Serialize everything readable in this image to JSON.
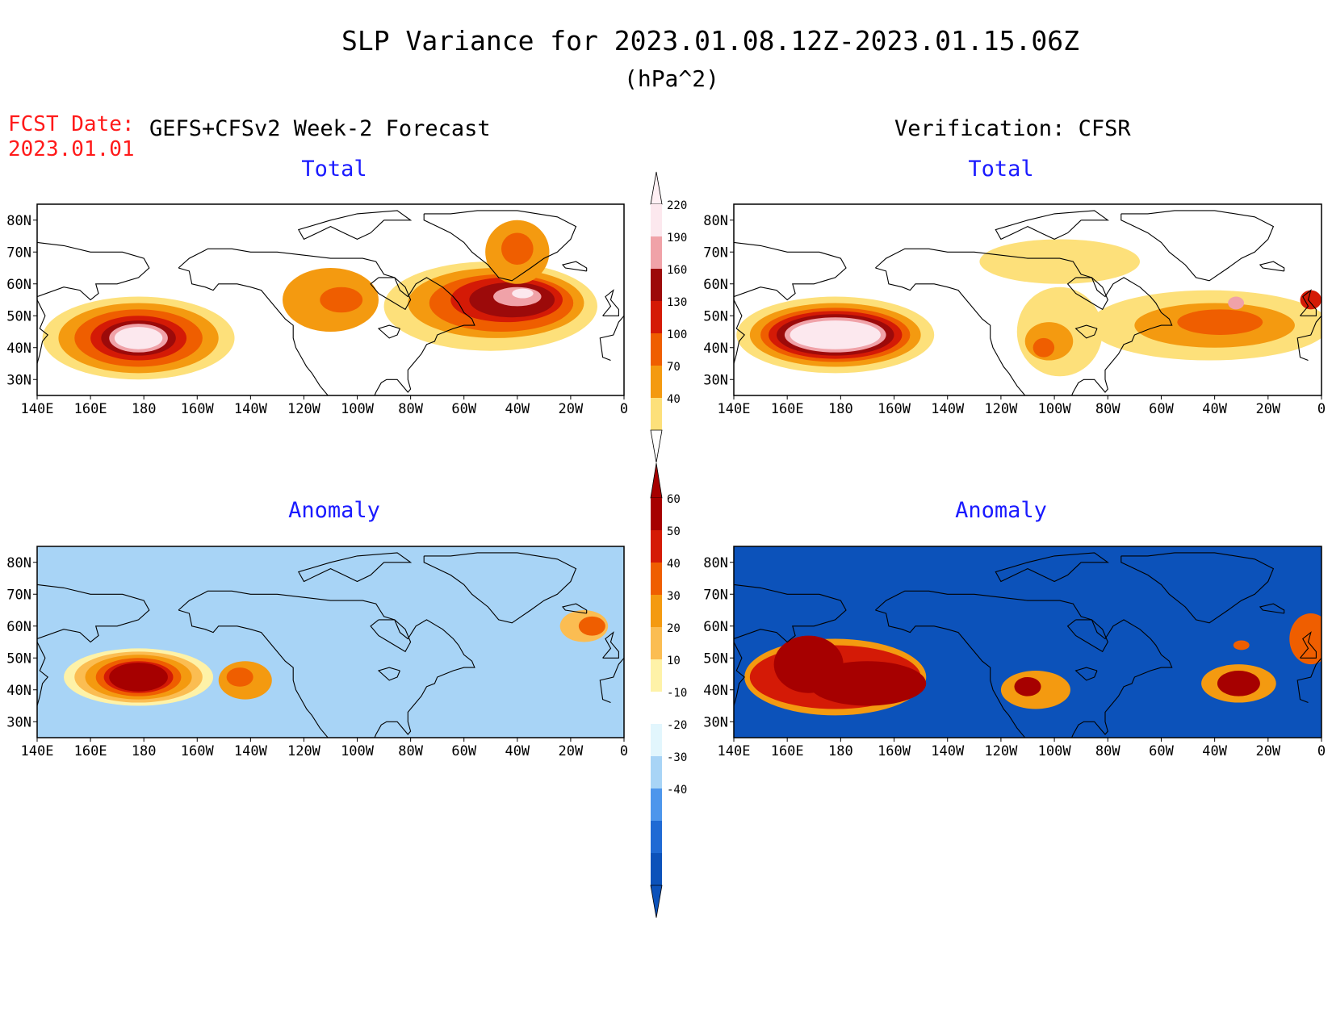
{
  "header": {
    "title": "SLP Variance for 2023.01.08.12Z-2023.01.15.06Z",
    "units": "(hPa^2)",
    "fcst_date_label": "FCST Date:",
    "fcst_date_value": "2023.01.01",
    "left_heading": "GEFS+CFSv2 Week-2 Forecast",
    "right_heading": "Verification: CFSR"
  },
  "panels": {
    "fc_total": {
      "title": "Total"
    },
    "vf_total": {
      "title": "Total"
    },
    "fc_anom": {
      "title": "Anomaly"
    },
    "vf_anom": {
      "title": "Anomaly"
    }
  },
  "axes": {
    "x_ticks": [
      "140E",
      "160E",
      "180",
      "160W",
      "140W",
      "120W",
      "100W",
      "80W",
      "60W",
      "40W",
      "20W",
      "0"
    ],
    "y_ticks": [
      "80N",
      "70N",
      "60N",
      "50N",
      "40N",
      "30N"
    ],
    "x_range_deg_east": [
      140,
      360
    ],
    "y_range_lat": [
      25,
      85
    ]
  },
  "colorbars": {
    "total": {
      "labels": [
        "220",
        "190",
        "160",
        "130",
        "100",
        "70",
        "40"
      ],
      "colors": [
        "#fce8ee",
        "#f0a2a8",
        "#9c0a0a",
        "#d41a06",
        "#ef5e00",
        "#f49a10",
        "#fde07a"
      ]
    },
    "anomaly": {
      "labels": [
        "60",
        "50",
        "40",
        "30",
        "20",
        "10",
        "-10",
        "-20",
        "-30",
        "-40"
      ],
      "pos_colors": [
        "#a60000",
        "#d41a06",
        "#ef5e00",
        "#f49a10",
        "#fbbd52",
        "#fef2a8"
      ],
      "white": "#ffffff",
      "neg_colors": [
        "#e2f6fd",
        "#a8d4f6",
        "#4d96ec",
        "#1f6ad4",
        "#0c52ba"
      ]
    }
  },
  "colors": {
    "title_text": "#000000",
    "fcst_date": "#ff1a1a",
    "panel_title": "#1a1aff",
    "coastline": "#000000"
  },
  "map_data": {
    "fc_total": [
      {
        "lon": 178,
        "lat": 43,
        "rlon": 36,
        "rlat": 13,
        "level": 1
      },
      {
        "lon": 178,
        "lat": 43,
        "rlon": 30,
        "rlat": 11,
        "level": 2
      },
      {
        "lon": 178,
        "lat": 43,
        "rlon": 24,
        "rlat": 9,
        "level": 3
      },
      {
        "lon": 178,
        "lat": 43,
        "rlon": 18,
        "rlat": 7,
        "level": 4
      },
      {
        "lon": 178,
        "lat": 43,
        "rlon": 14,
        "rlat": 5.5,
        "level": 5
      },
      {
        "lon": 178,
        "lat": 43,
        "rlon": 11,
        "rlat": 4.5,
        "level": 6
      },
      {
        "lon": 178,
        "lat": 43,
        "rlon": 9,
        "rlat": 3.5,
        "level": 7
      },
      {
        "lon": 310,
        "lat": 53,
        "rlon": 40,
        "rlat": 14,
        "level": 1
      },
      {
        "lon": 312,
        "lat": 54,
        "rlon": 33,
        "rlat": 11,
        "level": 2
      },
      {
        "lon": 314,
        "lat": 54,
        "rlon": 27,
        "rlat": 9,
        "level": 3
      },
      {
        "lon": 316,
        "lat": 55,
        "rlon": 21,
        "rlat": 7,
        "level": 4
      },
      {
        "lon": 318,
        "lat": 55,
        "rlon": 16,
        "rlat": 5.5,
        "level": 5
      },
      {
        "lon": 320,
        "lat": 56,
        "rlon": 9,
        "rlat": 3,
        "level": 6
      },
      {
        "lon": 322,
        "lat": 57,
        "rlon": 4,
        "rlat": 1.5,
        "level": 7
      },
      {
        "lon": 320,
        "lat": 70,
        "rlon": 12,
        "rlat": 10,
        "level": 2
      },
      {
        "lon": 320,
        "lat": 71,
        "rlon": 6,
        "rlat": 5,
        "level": 3
      },
      {
        "lon": 250,
        "lat": 55,
        "rlon": 18,
        "rlat": 10,
        "level": 2
      },
      {
        "lon": 254,
        "lat": 55,
        "rlon": 8,
        "rlat": 4,
        "level": 3
      }
    ],
    "vf_total": [
      {
        "lon": 178,
        "lat": 44,
        "rlon": 37,
        "rlat": 12,
        "level": 1
      },
      {
        "lon": 178,
        "lat": 44,
        "rlon": 32,
        "rlat": 10,
        "level": 2
      },
      {
        "lon": 178,
        "lat": 44,
        "rlon": 28,
        "rlat": 8.5,
        "level": 3
      },
      {
        "lon": 178,
        "lat": 44,
        "rlon": 25,
        "rlat": 7.5,
        "level": 4
      },
      {
        "lon": 178,
        "lat": 44,
        "rlon": 22,
        "rlat": 6.5,
        "level": 5
      },
      {
        "lon": 178,
        "lat": 44,
        "rlon": 19,
        "rlat": 5.5,
        "level": 6
      },
      {
        "lon": 178,
        "lat": 44,
        "rlon": 17,
        "rlat": 4.5,
        "level": 7
      },
      {
        "lon": 262,
        "lat": 45,
        "rlon": 16,
        "rlat": 14,
        "level": 1
      },
      {
        "lon": 258,
        "lat": 42,
        "rlon": 9,
        "rlat": 6,
        "level": 2
      },
      {
        "lon": 256,
        "lat": 40,
        "rlon": 4,
        "rlat": 3,
        "level": 3
      },
      {
        "lon": 318,
        "lat": 47,
        "rlon": 45,
        "rlat": 11,
        "level": 1
      },
      {
        "lon": 320,
        "lat": 47,
        "rlon": 30,
        "rlat": 7,
        "level": 2
      },
      {
        "lon": 322,
        "lat": 48,
        "rlon": 16,
        "rlat": 4,
        "level": 3
      },
      {
        "lon": 328,
        "lat": 54,
        "rlon": 3,
        "rlat": 2,
        "level": 6
      },
      {
        "lon": 356,
        "lat": 55,
        "rlon": 4,
        "rlat": 3,
        "level": 4
      },
      {
        "lon": 262,
        "lat": 67,
        "rlon": 30,
        "rlat": 7,
        "level": 1
      }
    ],
    "fc_anom": [
      {
        "lon": 178,
        "lat": 44,
        "rlon": 28,
        "rlat": 9,
        "level": 1
      },
      {
        "lon": 178,
        "lat": 44,
        "rlon": 24,
        "rlat": 8,
        "level": 2
      },
      {
        "lon": 178,
        "lat": 44,
        "rlon": 20,
        "rlat": 7,
        "level": 3
      },
      {
        "lon": 178,
        "lat": 44,
        "rlon": 16,
        "rlat": 6,
        "level": 4
      },
      {
        "lon": 178,
        "lat": 44,
        "rlon": 13,
        "rlat": 5,
        "level": 5
      },
      {
        "lon": 178,
        "lat": 44,
        "rlon": 11,
        "rlat": 4.5,
        "level": 6
      },
      {
        "lon": 218,
        "lat": 43,
        "rlon": 10,
        "rlat": 6,
        "level": 3
      },
      {
        "lon": 216,
        "lat": 44,
        "rlon": 5,
        "rlat": 3,
        "level": 4
      },
      {
        "lon": 345,
        "lat": 60,
        "rlon": 9,
        "rlat": 5,
        "level": 2
      },
      {
        "lon": 348,
        "lat": 60,
        "rlon": 5,
        "rlat": 3,
        "level": 4
      },
      {
        "lon": 335,
        "lat": 44,
        "rlon": 6,
        "rlat": 3,
        "level": -2
      }
    ],
    "vf_anom": [
      {
        "lon": 178,
        "lat": 44,
        "rlon": 34,
        "rlat": 12,
        "level": 3
      },
      {
        "lon": 178,
        "lat": 44,
        "rlon": 32,
        "rlat": 10,
        "level": 5
      },
      {
        "lon": 168,
        "lat": 48,
        "rlon": 13,
        "rlat": 9,
        "level": 6
      },
      {
        "lon": 190,
        "lat": 42,
        "rlon": 22,
        "rlat": 7,
        "level": 6
      },
      {
        "lon": 253,
        "lat": 40,
        "rlon": 13,
        "rlat": 6,
        "level": 3
      },
      {
        "lon": 250,
        "lat": 41,
        "rlon": 5,
        "rlat": 3,
        "level": 6
      },
      {
        "lon": 329,
        "lat": 42,
        "rlon": 14,
        "rlat": 6,
        "level": 3
      },
      {
        "lon": 329,
        "lat": 42,
        "rlon": 8,
        "rlat": 4,
        "level": 6
      },
      {
        "lon": 356,
        "lat": 56,
        "rlon": 8,
        "rlat": 8,
        "level": 4
      },
      {
        "lon": 330,
        "lat": 54,
        "rlon": 3,
        "rlat": 1.5,
        "level": 4
      }
    ]
  }
}
